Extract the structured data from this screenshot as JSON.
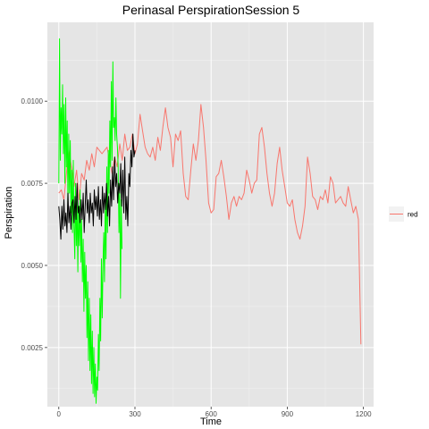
{
  "chart_data": {
    "type": "line",
    "title": "Perinasal PerspirationSession 5",
    "xlabel": "Time",
    "ylabel": "Perspiration",
    "xlim": [
      -45,
      1240
    ],
    "ylim": [
      0.0007,
      0.0124
    ],
    "x_ticks": [
      0,
      300,
      600,
      900,
      1200
    ],
    "x_tick_labels": [
      "0",
      "300",
      "600",
      "900",
      "1200"
    ],
    "y_ticks": [
      0.0025,
      0.005,
      0.0075,
      0.01
    ],
    "y_tick_labels": [
      "0.0025",
      "0.0050",
      "0.0075",
      "0.0100"
    ],
    "grid": true,
    "background": "#e5e5e5",
    "legend": {
      "position": "right",
      "entries": [
        {
          "label": "red",
          "color": "#f8766d"
        }
      ]
    },
    "series": [
      {
        "name": "red",
        "color": "#f8766d",
        "x": [
          0,
          10,
          20,
          30,
          40,
          50,
          60,
          70,
          80,
          90,
          100,
          110,
          120,
          130,
          140,
          150,
          160,
          170,
          180,
          190,
          200,
          210,
          220,
          230,
          240,
          250,
          260,
          270,
          280,
          290,
          300,
          310,
          320,
          330,
          340,
          350,
          360,
          370,
          380,
          390,
          400,
          410,
          420,
          430,
          440,
          450,
          460,
          470,
          480,
          490,
          500,
          510,
          520,
          530,
          540,
          550,
          560,
          570,
          580,
          590,
          600,
          610,
          620,
          630,
          640,
          650,
          660,
          670,
          680,
          690,
          700,
          710,
          720,
          730,
          740,
          750,
          760,
          770,
          780,
          790,
          800,
          810,
          820,
          830,
          840,
          850,
          860,
          870,
          880,
          890,
          900,
          910,
          920,
          930,
          940,
          950,
          960,
          970,
          980,
          990,
          1000,
          1010,
          1020,
          1030,
          1040,
          1050,
          1060,
          1070,
          1080,
          1090,
          1100,
          1110,
          1120,
          1130,
          1140,
          1150,
          1160,
          1170,
          1180,
          1185,
          1190
        ],
        "y": [
          0.0072,
          0.0073,
          0.007,
          0.0078,
          0.0085,
          0.008,
          0.0074,
          0.0079,
          0.007,
          0.0078,
          0.0076,
          0.0082,
          0.0079,
          0.0084,
          0.008,
          0.0086,
          0.0085,
          0.0084,
          0.0085,
          0.0086,
          0.0082,
          0.0078,
          0.0083,
          0.008,
          0.0087,
          0.0082,
          0.009,
          0.0085,
          0.0086,
          0.009,
          0.0084,
          0.0087,
          0.0096,
          0.0091,
          0.0086,
          0.0084,
          0.0083,
          0.0086,
          0.0082,
          0.0089,
          0.0085,
          0.0092,
          0.0098,
          0.0092,
          0.0089,
          0.008,
          0.009,
          0.0088,
          0.0091,
          0.0078,
          0.0071,
          0.007,
          0.0079,
          0.0087,
          0.0082,
          0.0088,
          0.0099,
          0.0092,
          0.0082,
          0.0069,
          0.0066,
          0.0067,
          0.0077,
          0.0078,
          0.0082,
          0.0077,
          0.0071,
          0.0064,
          0.0069,
          0.0071,
          0.0068,
          0.0071,
          0.007,
          0.0072,
          0.0079,
          0.0076,
          0.0072,
          0.0075,
          0.0076,
          0.009,
          0.0092,
          0.0086,
          0.0078,
          0.0072,
          0.0068,
          0.0072,
          0.0081,
          0.0086,
          0.0079,
          0.0074,
          0.0069,
          0.0068,
          0.007,
          0.0064,
          0.006,
          0.0058,
          0.0062,
          0.0068,
          0.0083,
          0.0078,
          0.0071,
          0.007,
          0.0067,
          0.0071,
          0.007,
          0.0073,
          0.0069,
          0.0077,
          0.0075,
          0.0069,
          0.007,
          0.0071,
          0.0069,
          0.0068,
          0.0074,
          0.007,
          0.0066,
          0.0068,
          0.0064,
          0.0045,
          0.0026
        ]
      },
      {
        "name": "",
        "color": "#00ff00",
        "x": [
          0,
          3,
          6,
          9,
          12,
          15,
          18,
          21,
          24,
          27,
          30,
          33,
          36,
          39,
          42,
          45,
          48,
          51,
          54,
          57,
          60,
          63,
          66,
          69,
          72,
          75,
          78,
          81,
          84,
          87,
          90,
          93,
          96,
          99,
          102,
          105,
          108,
          111,
          114,
          117,
          120,
          123,
          126,
          129,
          132,
          135,
          138,
          141,
          144,
          147,
          150,
          153,
          156,
          159,
          162,
          165,
          168,
          171,
          174,
          177,
          180,
          183,
          186,
          189,
          192,
          195,
          198,
          201,
          204,
          207,
          210,
          213,
          216,
          219,
          222,
          225,
          228,
          231,
          234,
          237,
          240,
          243,
          246,
          249
        ],
        "y": [
          0.0075,
          0.0119,
          0.0082,
          0.0098,
          0.009,
          0.0105,
          0.0084,
          0.0099,
          0.0075,
          0.0101,
          0.008,
          0.0094,
          0.0068,
          0.009,
          0.0072,
          0.0088,
          0.0066,
          0.0079,
          0.006,
          0.0082,
          0.0062,
          0.0052,
          0.0075,
          0.0056,
          0.007,
          0.0048,
          0.0068,
          0.0056,
          0.0073,
          0.0051,
          0.0064,
          0.0045,
          0.0058,
          0.0036,
          0.0054,
          0.004,
          0.005,
          0.0028,
          0.0045,
          0.0021,
          0.004,
          0.0018,
          0.0035,
          0.0014,
          0.003,
          0.0011,
          0.0025,
          0.001,
          0.002,
          0.0008,
          0.0016,
          0.0012,
          0.0029,
          0.0018,
          0.004,
          0.0027,
          0.0052,
          0.0034,
          0.005,
          0.006,
          0.0045,
          0.007,
          0.0052,
          0.008,
          0.006,
          0.0085,
          0.0072,
          0.0094,
          0.008,
          0.0106,
          0.0082,
          0.0112,
          0.0092,
          0.0095,
          0.0088,
          0.0101,
          0.009,
          0.0086,
          0.008,
          0.006,
          0.0075,
          0.004,
          0.007,
          0.0055
        ]
      },
      {
        "name": "",
        "color": "#000000",
        "x": [
          0,
          4,
          8,
          12,
          16,
          20,
          24,
          28,
          32,
          36,
          40,
          44,
          48,
          52,
          56,
          60,
          64,
          68,
          72,
          76,
          80,
          84,
          88,
          92,
          96,
          100,
          104,
          108,
          112,
          116,
          120,
          124,
          128,
          132,
          136,
          140,
          144,
          148,
          152,
          156,
          160,
          164,
          168,
          172,
          176,
          180,
          184,
          188,
          192,
          196,
          200,
          204,
          208,
          212,
          216,
          220,
          224,
          228,
          232,
          236,
          240,
          244,
          248,
          252,
          256,
          260,
          264,
          268,
          272,
          276,
          280,
          284,
          288,
          292,
          296,
          300
        ],
        "y": [
          0.0068,
          0.0064,
          0.0058,
          0.0068,
          0.0061,
          0.007,
          0.0062,
          0.0066,
          0.006,
          0.0072,
          0.0063,
          0.0068,
          0.0061,
          0.0069,
          0.007,
          0.0063,
          0.0071,
          0.0064,
          0.0075,
          0.0066,
          0.0068,
          0.0063,
          0.007,
          0.0064,
          0.0072,
          0.006,
          0.0068,
          0.0076,
          0.0066,
          0.007,
          0.0063,
          0.0072,
          0.0066,
          0.0069,
          0.0062,
          0.0073,
          0.0067,
          0.0071,
          0.0065,
          0.0074,
          0.0064,
          0.007,
          0.0062,
          0.0074,
          0.0066,
          0.0072,
          0.0067,
          0.0075,
          0.0065,
          0.0071,
          0.0062,
          0.0076,
          0.0068,
          0.008,
          0.007,
          0.0083,
          0.0074,
          0.0078,
          0.0069,
          0.0075,
          0.0072,
          0.0081,
          0.0068,
          0.0079,
          0.0066,
          0.0083,
          0.0064,
          0.0071,
          0.0062,
          0.0078,
          0.0074,
          0.0085,
          0.008,
          0.009,
          0.0083,
          0.0085
        ]
      }
    ]
  }
}
